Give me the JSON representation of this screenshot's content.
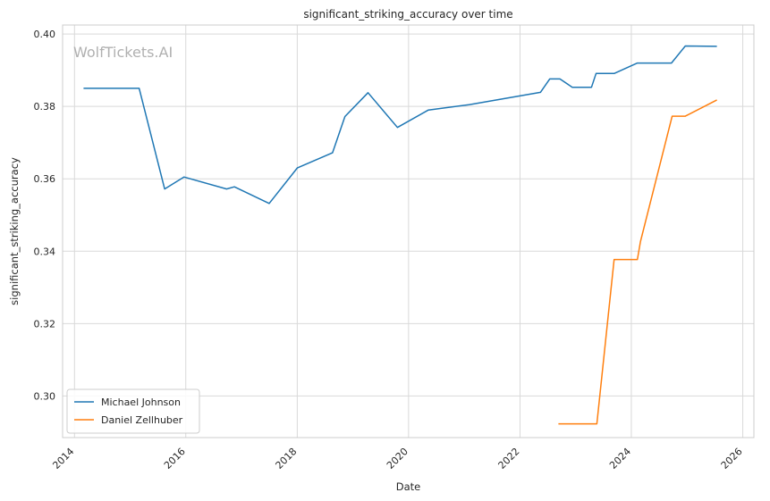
{
  "chart_data": {
    "type": "line",
    "title": "significant_striking_accuracy over time",
    "xlabel": "Date",
    "ylabel": "significant_striking_accuracy",
    "watermark": "WolfTickets.AI",
    "xlim": [
      "2013-10-15",
      "2026-03-15"
    ],
    "ylim": [
      0.2885,
      0.4025
    ],
    "x_ticks": [
      "2014",
      "2016",
      "2018",
      "2020",
      "2022",
      "2024",
      "2026"
    ],
    "y_ticks": [
      "0.30",
      "0.32",
      "0.34",
      "0.36",
      "0.38",
      "0.40"
    ],
    "grid": true,
    "legend_position": "lower-left",
    "series": [
      {
        "name": "Michael Johnson",
        "color": "#1f77b4",
        "points": [
          [
            "2014-03-01",
            0.385
          ],
          [
            "2015-03-01",
            0.385
          ],
          [
            "2015-08-15",
            0.3572
          ],
          [
            "2015-12-20",
            0.3605
          ],
          [
            "2016-09-25",
            0.3572
          ],
          [
            "2016-11-15",
            0.3578
          ],
          [
            "2017-07-01",
            0.3532
          ],
          [
            "2018-01-01",
            0.363
          ],
          [
            "2018-08-20",
            0.3672
          ],
          [
            "2018-11-10",
            0.3772
          ],
          [
            "2019-04-10",
            0.3838
          ],
          [
            "2019-10-20",
            0.3742
          ],
          [
            "2020-05-10",
            0.379
          ],
          [
            "2021-02-01",
            0.3805
          ],
          [
            "2022-05-15",
            0.3839
          ],
          [
            "2022-07-15",
            0.3876
          ],
          [
            "2022-09-20",
            0.3876
          ],
          [
            "2022-12-10",
            0.3853
          ],
          [
            "2023-04-15",
            0.3853
          ],
          [
            "2023-05-15",
            0.3891
          ],
          [
            "2023-09-10",
            0.3891
          ],
          [
            "2024-02-10",
            0.392
          ],
          [
            "2024-09-20",
            0.392
          ],
          [
            "2024-12-20",
            0.3967
          ],
          [
            "2025-07-15",
            0.3966
          ]
        ]
      },
      {
        "name": "Daniel Zellhuber",
        "color": "#ff7f0e",
        "points": [
          [
            "2022-09-10",
            0.2923
          ],
          [
            "2023-05-20",
            0.2923
          ],
          [
            "2023-09-10",
            0.3377
          ],
          [
            "2024-02-10",
            0.3377
          ],
          [
            "2024-03-01",
            0.3427
          ],
          [
            "2024-09-25",
            0.3773
          ],
          [
            "2024-12-20",
            0.3773
          ],
          [
            "2025-07-15",
            0.3818
          ]
        ]
      }
    ]
  }
}
